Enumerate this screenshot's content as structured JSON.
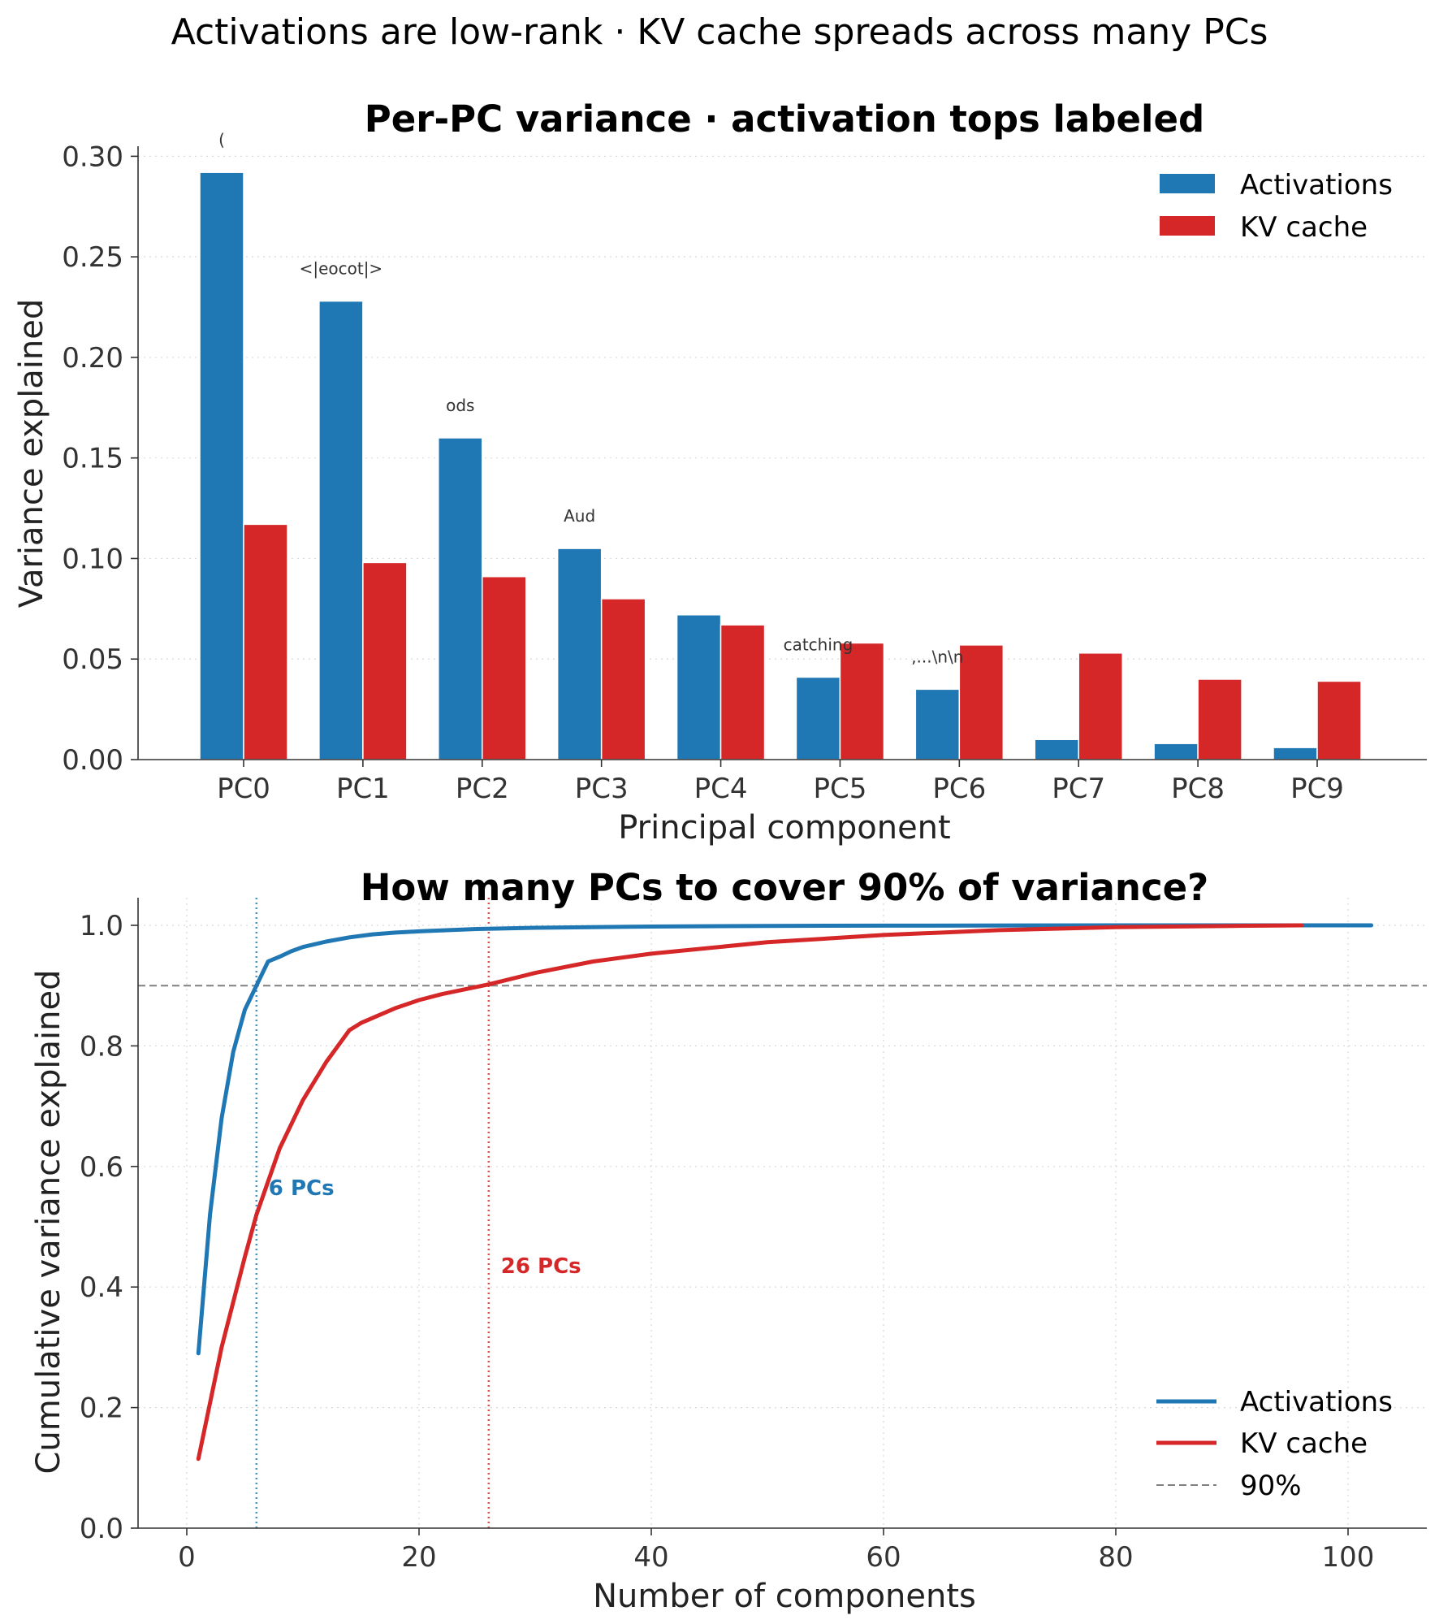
{
  "suptitle": "Activations are low-rank · KV cache spreads across many PCs",
  "colors": {
    "activations": "#1f77b4",
    "kv": "#d62728",
    "ref": "#808080"
  },
  "chart_data": [
    {
      "type": "bar",
      "title": "Per-PC variance · activation tops labeled",
      "xlabel": "Principal component",
      "ylabel": "Variance explained",
      "ylim": [
        0,
        0.305
      ],
      "yticks": [
        0.0,
        0.05,
        0.1,
        0.15,
        0.2,
        0.25,
        0.3
      ],
      "ytick_labels": [
        "0.00",
        "0.05",
        "0.10",
        "0.15",
        "0.20",
        "0.25",
        "0.30"
      ],
      "grid": "y, dotted",
      "legend_position": "top-right",
      "categories": [
        "PC0",
        "PC1",
        "PC2",
        "PC3",
        "PC4",
        "PC5",
        "PC6",
        "PC7",
        "PC8",
        "PC9"
      ],
      "series": [
        {
          "name": "Activations",
          "values": [
            0.292,
            0.228,
            0.16,
            0.105,
            0.072,
            0.041,
            0.035,
            0.01,
            0.008,
            0.006
          ]
        },
        {
          "name": "KV cache",
          "values": [
            0.117,
            0.098,
            0.091,
            0.08,
            0.067,
            0.058,
            0.057,
            0.053,
            0.04,
            0.039
          ]
        }
      ],
      "annotations": [
        "(",
        "<|eocot|>",
        "ods",
        "Aud",
        "",
        "catching",
        ",...\\n\\n",
        "",
        "",
        ""
      ]
    },
    {
      "type": "line",
      "title": "How many PCs to cover 90% of variance?",
      "xlabel": "Number of components",
      "ylabel": "Cumulative variance explained",
      "xlim": [
        -4,
        106
      ],
      "ylim": [
        0.0,
        1.02
      ],
      "xticks": [
        0,
        20,
        40,
        60,
        80,
        100
      ],
      "xtick_labels": [
        "0",
        "20",
        "40",
        "60",
        "80",
        "100"
      ],
      "yticks": [
        0.0,
        0.2,
        0.4,
        0.6,
        0.8,
        1.0
      ],
      "ytick_labels": [
        "0.0",
        "0.2",
        "0.4",
        "0.6",
        "0.8",
        "1.0"
      ],
      "grid": "both, dotted",
      "legend_position": "bottom-right",
      "series": [
        {
          "name": "Activations",
          "x": [
            1,
            2,
            3,
            4,
            5,
            6,
            7,
            8,
            9,
            10,
            12,
            14,
            16,
            18,
            20,
            25,
            30,
            40,
            50,
            60,
            80,
            102
          ],
          "y": [
            0.29,
            0.52,
            0.68,
            0.79,
            0.86,
            0.9,
            0.94,
            0.948,
            0.957,
            0.964,
            0.973,
            0.98,
            0.985,
            0.988,
            0.99,
            0.994,
            0.996,
            0.998,
            0.999,
            0.9995,
            1.0,
            1.0
          ]
        },
        {
          "name": "KV cache",
          "x": [
            1,
            3,
            5,
            6,
            8,
            10,
            12,
            14,
            15,
            18,
            20,
            22,
            26,
            30,
            35,
            40,
            50,
            60,
            70,
            80,
            90,
            96
          ],
          "y": [
            0.115,
            0.3,
            0.45,
            0.52,
            0.63,
            0.71,
            0.773,
            0.826,
            0.838,
            0.863,
            0.876,
            0.886,
            0.902,
            0.921,
            0.94,
            0.953,
            0.972,
            0.984,
            0.992,
            0.997,
            0.999,
            1.0
          ]
        }
      ],
      "reference_line": {
        "name": "90%",
        "y": 0.9
      },
      "thresholds": [
        {
          "series": "Activations",
          "x": 6,
          "label": "6 PCs",
          "label_y": 0.565
        },
        {
          "series": "KV cache",
          "x": 26,
          "label": "26 PCs",
          "label_y": 0.435
        }
      ]
    }
  ]
}
